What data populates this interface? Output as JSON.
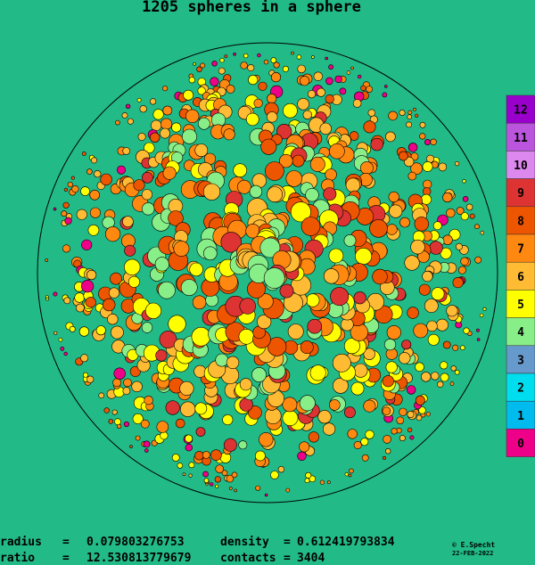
{
  "title": "1205 spheres in a sphere",
  "legend": [
    {
      "label": "12",
      "color": "#9900cc"
    },
    {
      "label": "11",
      "color": "#bb55dd"
    },
    {
      "label": "10",
      "color": "#dd88ee"
    },
    {
      "label": "9",
      "color": "#dd3333"
    },
    {
      "label": "8",
      "color": "#ee5500"
    },
    {
      "label": "7",
      "color": "#ff8811"
    },
    {
      "label": "6",
      "color": "#ffbb33"
    },
    {
      "label": "5",
      "color": "#ffff00"
    },
    {
      "label": "4",
      "color": "#88ee88"
    },
    {
      "label": "3",
      "color": "#6699cc"
    },
    {
      "label": "2",
      "color": "#00ddee"
    },
    {
      "label": "1",
      "color": "#00bbee"
    },
    {
      "label": "0",
      "color": "#ee0088"
    }
  ],
  "separator": "=",
  "stats": [
    {
      "label": "radius",
      "value": 0.079803276753
    },
    {
      "label": "density",
      "value": 0.612419793834
    },
    {
      "label": "ratio",
      "value": 12.530813779679
    },
    {
      "label": "contacts",
      "value": 3404
    }
  ],
  "credit": "© E.Specht",
  "date": "22-FEB-2022"
}
